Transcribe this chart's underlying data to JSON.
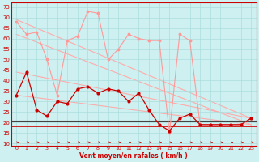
{
  "xlabel": "Vent moyen/en rafales ( km/h )",
  "bg_color": "#cff0f0",
  "grid_color": "#aadddd",
  "xlim": [
    -0.5,
    23.5
  ],
  "ylim": [
    9,
    77
  ],
  "yticks": [
    10,
    15,
    20,
    25,
    30,
    35,
    40,
    45,
    50,
    55,
    60,
    65,
    70,
    75
  ],
  "xticks": [
    0,
    1,
    2,
    3,
    4,
    5,
    6,
    7,
    8,
    9,
    10,
    11,
    12,
    13,
    14,
    15,
    16,
    17,
    18,
    19,
    20,
    21,
    22,
    23
  ],
  "hours": [
    0,
    1,
    2,
    3,
    4,
    5,
    6,
    7,
    8,
    9,
    10,
    11,
    12,
    13,
    14,
    15,
    16,
    17,
    18,
    19,
    20,
    21,
    22,
    23
  ],
  "wind_avg": [
    33,
    44,
    26,
    23,
    30,
    29,
    36,
    37,
    34,
    36,
    35,
    30,
    34,
    26,
    19,
    16,
    22,
    24,
    19,
    19,
    19,
    19,
    19,
    22
  ],
  "wind_gust": [
    68,
    62,
    63,
    50,
    33,
    59,
    61,
    73,
    72,
    50,
    55,
    62,
    60,
    59,
    59,
    15,
    62,
    59,
    19,
    19,
    19,
    19,
    19,
    22
  ],
  "trend_lines": [
    [
      0,
      69,
      23,
      22
    ],
    [
      0,
      62,
      23,
      19
    ],
    [
      0,
      44,
      23,
      22
    ],
    [
      0,
      33,
      23,
      19
    ]
  ],
  "hline_red": 18,
  "hline_dark": 21,
  "avg_color": "#cc0000",
  "gust_color": "#ff9999",
  "trend_color": "#ffaaaa",
  "hline_red_color": "#cc0000",
  "hline_dark_color": "#444444",
  "tick_color": "#cc0000",
  "spine_color": "#cc0000",
  "xlabel_color": "#cc0000"
}
